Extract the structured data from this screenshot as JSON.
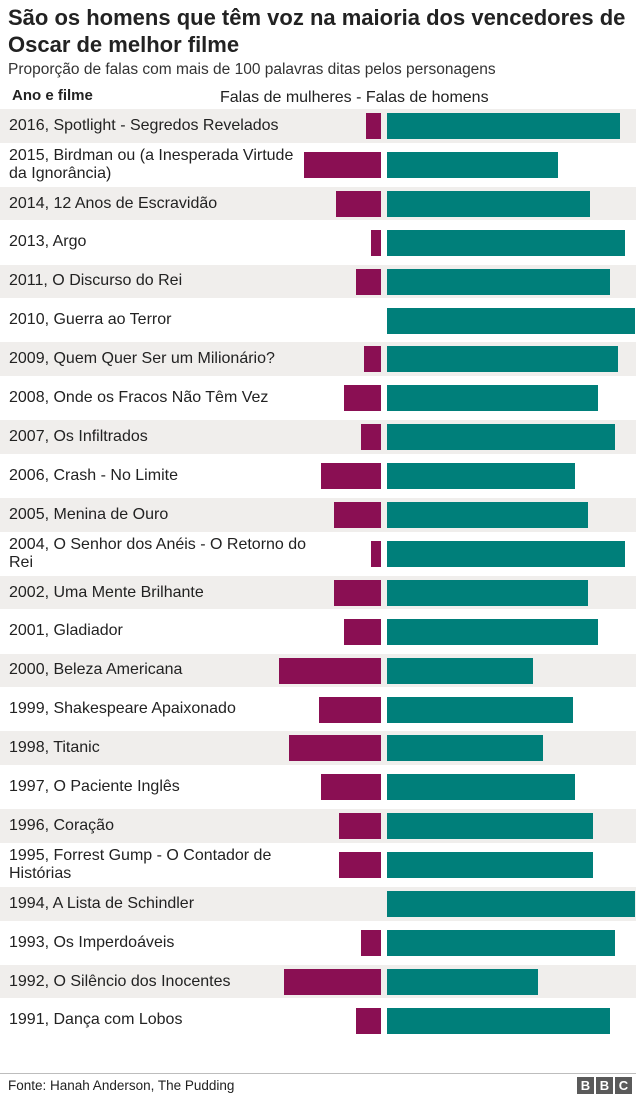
{
  "header": {
    "title": "São os homens que têm voz na maioria dos vencedores de Oscar de melhor filme",
    "subtitle": "Proporção de falas com mais de 100 palavras ditas pelos personagens",
    "col_left": "Ano e filme",
    "col_right": "Falas de mulheres - Falas de homens"
  },
  "footer": {
    "source": "Fonte: Hanah Anderson, The Pudding",
    "logo": [
      "B",
      "B",
      "C"
    ]
  },
  "colors": {
    "women": "#8a0f53",
    "men": "#007f7a",
    "row_band": "#f0eeec"
  },
  "chart_data": {
    "type": "bar",
    "orientation": "horizontal-diverging",
    "title": "São os homens que têm voz na maioria dos vencedores de Oscar de melhor filme",
    "subtitle": "Proporção de falas com mais de 100 palavras ditas pelos personagens",
    "xlim": [
      0,
      1
    ],
    "grid": false,
    "categories": [
      "2016, Spotlight - Segredos Revelados",
      "2015, Birdman ou (a Inesperada Virtude da Ignorância)",
      "2014, 12 Anos de Escravidão",
      "2013, Argo",
      "2011, O Discurso do Rei",
      "2010, Guerra ao Terror",
      "2009, Quem Quer Ser um Milionário?",
      "2008, Onde os Fracos Não Têm Vez",
      "2007, Os Infiltrados",
      "2006, Crash - No Limite",
      "2005, Menina de Ouro",
      "2004, O Senhor dos Anéis - O Retorno do Rei",
      "2002, Uma Mente Brilhante",
      "2001, Gladiador",
      "2000, Beleza Americana",
      "1999, Shakespeare Apaixonado",
      "1998, Titanic",
      "1997, O Paciente Inglês",
      "1996, Coração",
      "1995, Forrest Gump - O Contador de Histórias",
      "1994, A Lista de Schindler",
      "1993, Os Imperdoáveis",
      "1992, O Silêncio dos Inocentes",
      "1991, Dança com Lobos"
    ],
    "series": [
      {
        "name": "Falas de mulheres",
        "values": [
          0.06,
          0.31,
          0.18,
          0.04,
          0.1,
          0.0,
          0.07,
          0.15,
          0.08,
          0.24,
          0.19,
          0.04,
          0.19,
          0.15,
          0.41,
          0.25,
          0.37,
          0.24,
          0.17,
          0.17,
          0.0,
          0.08,
          0.39,
          0.1
        ]
      },
      {
        "name": "Falas de homens",
        "values": [
          0.94,
          0.69,
          0.82,
          0.96,
          0.9,
          1.0,
          0.93,
          0.85,
          0.92,
          0.76,
          0.81,
          0.96,
          0.81,
          0.85,
          0.59,
          0.75,
          0.63,
          0.76,
          0.83,
          0.83,
          1.0,
          0.92,
          0.61,
          0.9
        ]
      }
    ]
  }
}
